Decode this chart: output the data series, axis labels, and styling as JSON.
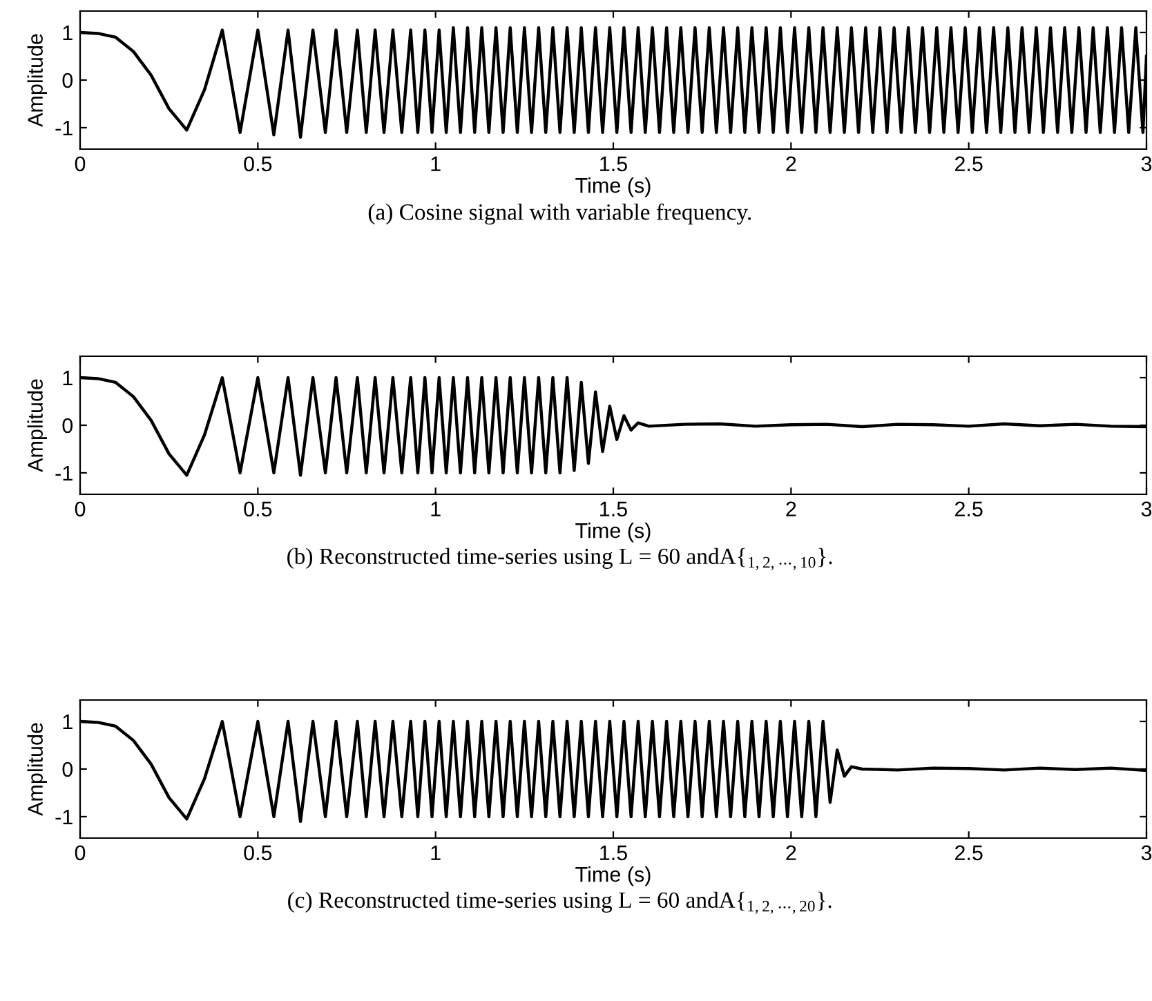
{
  "chart_data": [
    {
      "type": "line",
      "xlabel": "Time (s)",
      "ylabel": "Amplitude",
      "xlim": [
        0,
        3
      ],
      "ylim": [
        -1.45,
        1.45
      ],
      "xticks": [
        0,
        0.5,
        1,
        1.5,
        2,
        2.5,
        3
      ],
      "yticks": [
        -1,
        0,
        1
      ],
      "annotations": [
        "(a) Cosine signal with variable frequency."
      ],
      "series": [
        {
          "color": "#000000",
          "x": [
            0,
            0.05,
            0.1,
            0.15,
            0.2,
            0.25,
            0.3,
            0.35,
            0.4,
            0.45,
            0.5,
            0.545,
            0.585,
            0.62,
            0.655,
            0.69,
            0.72,
            0.75,
            0.78,
            0.805,
            0.83,
            0.855,
            0.88,
            0.905,
            0.93,
            0.95,
            0.97,
            0.99,
            1.01,
            1.03,
            1.05,
            1.07,
            1.09,
            1.11,
            1.13,
            1.15,
            1.17,
            1.19,
            1.21,
            1.23,
            1.25,
            1.27,
            1.29,
            1.31,
            1.33,
            1.35,
            1.37,
            1.39,
            1.41,
            1.43,
            1.45,
            1.47,
            1.49,
            1.51,
            1.53,
            1.55,
            1.57,
            1.59,
            1.61,
            1.63,
            1.65,
            1.67,
            1.69,
            1.71,
            1.73,
            1.75,
            1.77,
            1.79,
            1.81,
            1.83,
            1.85,
            1.87,
            1.89,
            1.91,
            1.93,
            1.95,
            1.97,
            1.99,
            2.01,
            2.03,
            2.05,
            2.07,
            2.09,
            2.11,
            2.13,
            2.15,
            2.17,
            2.19,
            2.21,
            2.23,
            2.25,
            2.27,
            2.29,
            2.31,
            2.33,
            2.35,
            2.37,
            2.39,
            2.41,
            2.43,
            2.45,
            2.47,
            2.49,
            2.51,
            2.53,
            2.55,
            2.57,
            2.59,
            2.61,
            2.63,
            2.65,
            2.67,
            2.69,
            2.71,
            2.73,
            2.75,
            2.77,
            2.79,
            2.81,
            2.83,
            2.85,
            2.87,
            2.89,
            2.91,
            2.93,
            2.95,
            2.97,
            2.99,
            3.0
          ],
          "values": [
            1.0,
            0.98,
            0.9,
            0.6,
            0.1,
            -0.6,
            -1.05,
            -0.2,
            1.05,
            -1.1,
            1.05,
            -1.15,
            1.05,
            -1.2,
            1.05,
            -1.1,
            1.05,
            -1.1,
            1.05,
            -1.1,
            1.05,
            -1.1,
            1.05,
            -1.1,
            1.05,
            -1.1,
            1.05,
            -1.1,
            1.05,
            -1.1,
            1.1,
            -1.1,
            1.1,
            -1.1,
            1.1,
            -1.1,
            1.1,
            -1.1,
            1.1,
            -1.1,
            1.1,
            -1.1,
            1.1,
            -1.1,
            1.1,
            -1.1,
            1.1,
            -1.1,
            1.1,
            -1.1,
            1.1,
            -1.1,
            1.1,
            -1.1,
            1.1,
            -1.1,
            1.1,
            -1.1,
            1.1,
            -1.1,
            1.1,
            -1.1,
            1.1,
            -1.1,
            1.1,
            -1.1,
            1.1,
            -1.1,
            1.1,
            -1.1,
            1.1,
            -1.1,
            1.1,
            -1.1,
            1.1,
            -1.1,
            1.1,
            -1.1,
            1.1,
            -1.1,
            1.1,
            -1.1,
            1.1,
            -1.1,
            1.1,
            -1.1,
            1.1,
            -1.1,
            1.1,
            -1.1,
            1.1,
            -1.1,
            1.1,
            -1.1,
            1.1,
            -1.1,
            1.1,
            -1.1,
            1.1,
            -1.1,
            1.1,
            -1.1,
            1.1,
            -1.1,
            1.1,
            -1.1,
            1.1,
            -1.1,
            1.1,
            -1.1,
            1.1,
            -1.1,
            1.1,
            -1.1,
            1.1,
            -1.1,
            1.1,
            -1.1,
            1.1,
            -1.1,
            1.1,
            -1.1,
            1.1,
            -1.1,
            1.1,
            -1.1,
            1.1,
            -1.1,
            0.5
          ]
        }
      ]
    },
    {
      "type": "line",
      "xlabel": "Time (s)",
      "ylabel": "Amplitude",
      "xlim": [
        0,
        3
      ],
      "ylim": [
        -1.45,
        1.45
      ],
      "xticks": [
        0,
        0.5,
        1,
        1.5,
        2,
        2.5,
        3
      ],
      "yticks": [
        -1,
        0,
        1
      ],
      "annotations": [
        "(b) Reconstructed time-series using L = 60 andA{$_{1,2,⋯,10}$}."
      ],
      "series": [
        {
          "color": "#000000",
          "x": [
            0,
            0.05,
            0.1,
            0.15,
            0.2,
            0.25,
            0.3,
            0.35,
            0.4,
            0.45,
            0.5,
            0.545,
            0.585,
            0.62,
            0.655,
            0.69,
            0.72,
            0.75,
            0.78,
            0.805,
            0.83,
            0.855,
            0.88,
            0.905,
            0.93,
            0.95,
            0.97,
            0.99,
            1.01,
            1.03,
            1.05,
            1.07,
            1.09,
            1.11,
            1.13,
            1.15,
            1.17,
            1.19,
            1.21,
            1.23,
            1.25,
            1.27,
            1.29,
            1.31,
            1.33,
            1.35,
            1.37,
            1.39,
            1.41,
            1.43,
            1.45,
            1.47,
            1.49,
            1.51,
            1.53,
            1.55,
            1.57,
            1.6,
            1.7,
            1.8,
            1.9,
            2.0,
            2.1,
            2.2,
            2.3,
            2.4,
            2.5,
            2.6,
            2.7,
            2.8,
            2.9,
            3.0
          ],
          "values": [
            1.0,
            0.98,
            0.9,
            0.6,
            0.1,
            -0.6,
            -1.05,
            -0.2,
            1.0,
            -1.0,
            1.0,
            -1.0,
            1.0,
            -1.05,
            1.0,
            -1.0,
            1.0,
            -1.0,
            1.0,
            -1.0,
            1.0,
            -1.0,
            1.0,
            -1.0,
            1.0,
            -1.0,
            1.0,
            -1.0,
            1.0,
            -1.0,
            1.0,
            -1.0,
            1.0,
            -1.0,
            1.0,
            -1.0,
            1.0,
            -1.0,
            1.0,
            -1.0,
            1.0,
            -1.0,
            1.0,
            -1.0,
            1.0,
            -1.0,
            1.0,
            -0.95,
            0.9,
            -0.8,
            0.7,
            -0.55,
            0.4,
            -0.3,
            0.2,
            -0.1,
            0.05,
            -0.02,
            0.02,
            0.03,
            -0.02,
            0.01,
            0.02,
            -0.03,
            0.02,
            0.01,
            -0.02,
            0.03,
            -0.01,
            0.02,
            -0.02,
            -0.03
          ]
        }
      ]
    },
    {
      "type": "line",
      "xlabel": "Time (s)",
      "ylabel": "Amplitude",
      "xlim": [
        0,
        3
      ],
      "ylim": [
        -1.45,
        1.45
      ],
      "xticks": [
        0,
        0.5,
        1,
        1.5,
        2,
        2.5,
        3
      ],
      "yticks": [
        -1,
        0,
        1
      ],
      "annotations": [
        "(c) Reconstructed time-series using L = 60 andA{$_{1,2,⋯,20}$}."
      ],
      "series": [
        {
          "color": "#000000",
          "x": [
            0,
            0.05,
            0.1,
            0.15,
            0.2,
            0.25,
            0.3,
            0.35,
            0.4,
            0.45,
            0.5,
            0.545,
            0.585,
            0.62,
            0.655,
            0.69,
            0.72,
            0.75,
            0.78,
            0.805,
            0.83,
            0.855,
            0.88,
            0.905,
            0.93,
            0.95,
            0.97,
            0.99,
            1.01,
            1.03,
            1.05,
            1.07,
            1.09,
            1.11,
            1.13,
            1.15,
            1.17,
            1.19,
            1.21,
            1.23,
            1.25,
            1.27,
            1.29,
            1.31,
            1.33,
            1.35,
            1.37,
            1.39,
            1.41,
            1.43,
            1.45,
            1.47,
            1.49,
            1.51,
            1.53,
            1.55,
            1.57,
            1.59,
            1.61,
            1.63,
            1.65,
            1.67,
            1.69,
            1.71,
            1.73,
            1.75,
            1.77,
            1.79,
            1.81,
            1.83,
            1.85,
            1.87,
            1.89,
            1.91,
            1.93,
            1.95,
            1.97,
            1.99,
            2.01,
            2.03,
            2.05,
            2.07,
            2.09,
            2.11,
            2.13,
            2.15,
            2.17,
            2.2,
            2.3,
            2.4,
            2.5,
            2.6,
            2.7,
            2.8,
            2.9,
            3.0
          ],
          "values": [
            1.0,
            0.98,
            0.9,
            0.6,
            0.1,
            -0.6,
            -1.05,
            -0.2,
            1.0,
            -1.0,
            1.0,
            -1.0,
            1.0,
            -1.1,
            1.0,
            -1.0,
            1.0,
            -1.0,
            1.0,
            -1.0,
            1.0,
            -1.0,
            1.0,
            -1.0,
            1.0,
            -1.0,
            1.0,
            -1.0,
            1.0,
            -1.0,
            1.0,
            -1.0,
            1.0,
            -1.0,
            1.0,
            -1.0,
            1.0,
            -1.0,
            1.0,
            -1.0,
            1.0,
            -1.0,
            1.0,
            -1.0,
            1.0,
            -1.0,
            1.0,
            -1.0,
            1.0,
            -1.0,
            1.0,
            -1.0,
            1.0,
            -1.0,
            1.0,
            -1.0,
            1.0,
            -1.0,
            1.0,
            -1.0,
            1.0,
            -1.0,
            1.0,
            -1.0,
            1.0,
            -1.0,
            1.0,
            -1.0,
            1.0,
            -1.0,
            1.0,
            -1.0,
            1.0,
            -1.0,
            1.0,
            -1.0,
            1.0,
            -1.0,
            1.0,
            -1.0,
            1.0,
            -1.0,
            1.0,
            -0.7,
            0.4,
            -0.15,
            0.05,
            0.0,
            -0.02,
            0.02,
            0.01,
            -0.02,
            0.02,
            -0.01,
            0.02,
            -0.03
          ]
        }
      ]
    }
  ]
}
